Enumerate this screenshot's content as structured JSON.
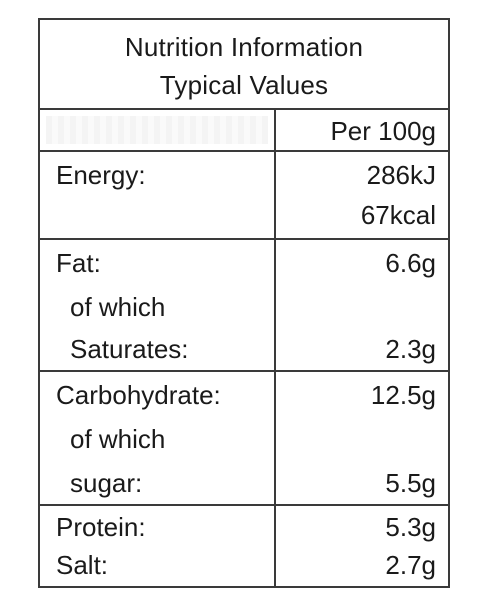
{
  "title_line1": "Nutrition Information",
  "title_line2": "Typical Values",
  "column_header": "Per 100g",
  "rows": [
    {
      "lines": [
        {
          "label": "Energy:",
          "value": "286kJ"
        },
        {
          "label": "",
          "value": "67kcal"
        }
      ]
    },
    {
      "lines": [
        {
          "label": "Fat:",
          "value": "6.6g"
        },
        {
          "label": "of which",
          "value": ""
        },
        {
          "label": "Saturates:",
          "value": "2.3g"
        }
      ]
    },
    {
      "lines": [
        {
          "label": "Carbohydrate:",
          "value": "12.5g"
        },
        {
          "label": "of which",
          "value": ""
        },
        {
          "label": "sugar:",
          "value": "5.5g"
        }
      ]
    },
    {
      "lines": [
        {
          "label": "Protein:",
          "value": "5.3g"
        },
        {
          "label": "Salt:",
          "value": "2.7g"
        }
      ]
    }
  ]
}
